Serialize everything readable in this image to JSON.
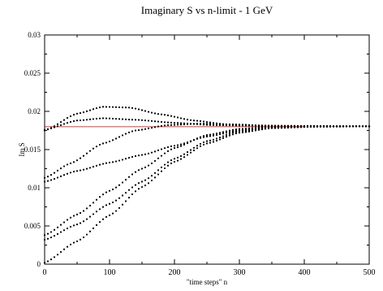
{
  "chart_data": {
    "type": "scatter",
    "title": "Imaginary S  vs n-limit  - 1 GeV",
    "xlabel": "\"time steps\" n",
    "ylabel": "Im S",
    "xlim": [
      0,
      500
    ],
    "ylim": [
      0,
      0.03
    ],
    "x_ticks": [
      {
        "value": 0,
        "label": "0"
      },
      {
        "value": 100,
        "label": "100"
      },
      {
        "value": 200,
        "label": "200"
      },
      {
        "value": 300,
        "label": "300"
      },
      {
        "value": 400,
        "label": "400"
      },
      {
        "value": 500,
        "label": "500"
      }
    ],
    "y_ticks": [
      {
        "value": 0,
        "label": "0"
      },
      {
        "value": 0.005,
        "label": "0.005"
      },
      {
        "value": 0.01,
        "label": "0.01"
      },
      {
        "value": 0.015,
        "label": "0.015"
      },
      {
        "value": 0.02,
        "label": "0.02"
      },
      {
        "value": 0.025,
        "label": "0.025"
      },
      {
        "value": 0.03,
        "label": "0.03"
      }
    ],
    "grid": false,
    "reference_line": {
      "y": 0.018,
      "x_range": [
        0,
        400
      ],
      "color": "#e07070"
    },
    "marker_color": "#000000",
    "point_spacing_n": 5,
    "series": [
      {
        "points": [
          [
            0,
            0.0175
          ],
          [
            50,
            0.0197
          ],
          [
            90,
            0.0206
          ],
          [
            130,
            0.0205
          ],
          [
            180,
            0.0196
          ],
          [
            230,
            0.0188
          ],
          [
            280,
            0.0183
          ],
          [
            330,
            0.01815
          ],
          [
            400,
            0.0181
          ],
          [
            500,
            0.01805
          ]
        ]
      },
      {
        "points": [
          [
            0,
            0.0176
          ],
          [
            50,
            0.0188
          ],
          [
            90,
            0.0191
          ],
          [
            140,
            0.0189
          ],
          [
            200,
            0.0185
          ],
          [
            260,
            0.0182
          ],
          [
            320,
            0.0181
          ],
          [
            400,
            0.01805
          ],
          [
            500,
            0.01805
          ]
        ]
      },
      {
        "points": [
          [
            0,
            0.0113
          ],
          [
            40,
            0.0132
          ],
          [
            90,
            0.0158
          ],
          [
            140,
            0.0175
          ],
          [
            190,
            0.0182
          ],
          [
            240,
            0.0184
          ],
          [
            290,
            0.0183
          ],
          [
            350,
            0.0181
          ],
          [
            420,
            0.01805
          ],
          [
            500,
            0.01805
          ]
        ]
      },
      {
        "points": [
          [
            0,
            0.0108
          ],
          [
            50,
            0.0122
          ],
          [
            100,
            0.0133
          ],
          [
            150,
            0.0143
          ],
          [
            200,
            0.0155
          ],
          [
            250,
            0.0167
          ],
          [
            300,
            0.0175
          ],
          [
            350,
            0.0179
          ],
          [
            420,
            0.018
          ],
          [
            500,
            0.01805
          ]
        ]
      },
      {
        "points": [
          [
            0,
            0.0038
          ],
          [
            50,
            0.0065
          ],
          [
            100,
            0.0096
          ],
          [
            150,
            0.0125
          ],
          [
            200,
            0.0152
          ],
          [
            250,
            0.0169
          ],
          [
            300,
            0.0177
          ],
          [
            350,
            0.018
          ],
          [
            420,
            0.01805
          ],
          [
            500,
            0.01805
          ]
        ]
      },
      {
        "points": [
          [
            0,
            0.0032
          ],
          [
            50,
            0.0052
          ],
          [
            100,
            0.0079
          ],
          [
            150,
            0.0108
          ],
          [
            200,
            0.0138
          ],
          [
            250,
            0.0161
          ],
          [
            300,
            0.0174
          ],
          [
            350,
            0.0179
          ],
          [
            420,
            0.018
          ],
          [
            500,
            0.01805
          ]
        ]
      },
      {
        "points": [
          [
            0,
            0.0002
          ],
          [
            50,
            0.003
          ],
          [
            100,
            0.0064
          ],
          [
            150,
            0.0101
          ],
          [
            200,
            0.0134
          ],
          [
            250,
            0.0158
          ],
          [
            300,
            0.0172
          ],
          [
            350,
            0.0178
          ],
          [
            420,
            0.018
          ],
          [
            500,
            0.01805
          ]
        ]
      }
    ]
  }
}
